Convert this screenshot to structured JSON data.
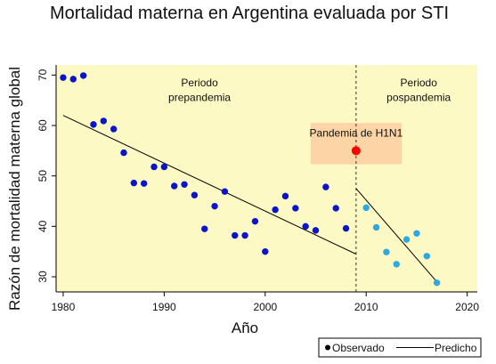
{
  "chart_data": {
    "type": "scatter",
    "title": "Mortalidad materna en Argentina evaluada por STI",
    "xlabel": "Año",
    "ylabel": "Razón de mortalidad materna global",
    "xlim": [
      1979.3,
      2021
    ],
    "ylim": [
      27,
      72
    ],
    "xticks": [
      1980,
      1990,
      2000,
      2010,
      2020
    ],
    "yticks": [
      30,
      40,
      50,
      60,
      70
    ],
    "grid": false,
    "colors": {
      "background": "#fdf9c4",
      "pre": "#0a14c8",
      "post": "#2ea8e0",
      "highlight": "#ff0000",
      "highlight_box": "#fcd4a6",
      "line": "#000000"
    },
    "series": [
      {
        "key": "pre",
        "points": [
          [
            1980,
            69.5
          ],
          [
            1981,
            69.2
          ],
          [
            1982,
            69.9
          ],
          [
            1983,
            60.2
          ],
          [
            1984,
            60.9
          ],
          [
            1985,
            59.3
          ],
          [
            1986,
            54.6
          ],
          [
            1987,
            48.6
          ],
          [
            1988,
            48.5
          ],
          [
            1989,
            51.8
          ],
          [
            1990,
            51.8
          ],
          [
            1991,
            48.0
          ],
          [
            1992,
            48.3
          ],
          [
            1993,
            46.2
          ],
          [
            1994,
            39.5
          ],
          [
            1995,
            44.0
          ],
          [
            1996,
            46.9
          ],
          [
            1997,
            38.2
          ],
          [
            1998,
            38.2
          ],
          [
            1999,
            41.0
          ],
          [
            2000,
            35.0
          ],
          [
            2001,
            43.3
          ],
          [
            2002,
            46.0
          ],
          [
            2003,
            43.6
          ],
          [
            2004,
            40.0
          ],
          [
            2005,
            39.2
          ],
          [
            2006,
            47.8
          ],
          [
            2007,
            43.6
          ],
          [
            2008,
            39.6
          ]
        ]
      },
      {
        "key": "post",
        "points": [
          [
            2010,
            43.7
          ],
          [
            2011,
            39.8
          ],
          [
            2012,
            34.9
          ],
          [
            2013,
            32.5
          ],
          [
            2014,
            37.4
          ],
          [
            2015,
            38.6
          ],
          [
            2016,
            34.1
          ],
          [
            2017,
            28.8
          ]
        ]
      },
      {
        "key": "highlight",
        "points": [
          [
            2009,
            55.0
          ]
        ]
      }
    ],
    "fitted_lines": [
      {
        "key": "pre",
        "points": [
          [
            1980,
            62.0
          ],
          [
            2009,
            34.5
          ]
        ]
      },
      {
        "key": "post",
        "points": [
          [
            2009,
            47.5
          ],
          [
            2017,
            29.0
          ]
        ]
      }
    ],
    "intervention_x": 2009,
    "highlight_box": {
      "x": [
        2004.5,
        2013.5
      ],
      "y": [
        52.3,
        60.5
      ]
    },
    "annotations": [
      {
        "lines": [
          "Periodo",
          "prepandemia"
        ],
        "x": 1993.5,
        "y": [
          68.5,
          65.6
        ]
      },
      {
        "lines": [
          "Periodo",
          "pospandemia"
        ],
        "x": 2015.2,
        "y": [
          68.5,
          65.6
        ]
      },
      {
        "lines": [
          "Pandemia de H1N1"
        ],
        "x": 2009,
        "y": [
          58.5
        ]
      }
    ],
    "legend": {
      "position": "bottom-right",
      "entries": [
        {
          "label": "Observado",
          "marker": "dot"
        },
        {
          "label": "Predicho",
          "marker": "line"
        }
      ]
    }
  }
}
